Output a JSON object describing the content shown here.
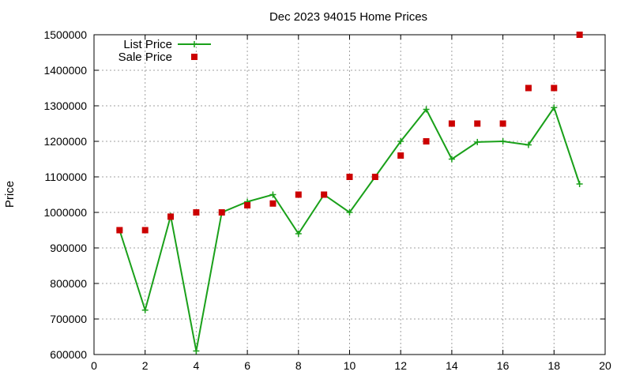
{
  "chart_data": {
    "type": "line",
    "title": "Dec 2023 94015 Home Prices",
    "xlabel": "",
    "ylabel": "Price",
    "xlim": [
      0,
      20
    ],
    "ylim": [
      600000,
      1500000
    ],
    "x_ticks": [
      0,
      2,
      4,
      6,
      8,
      10,
      12,
      14,
      16,
      18,
      20
    ],
    "y_ticks": [
      600000,
      700000,
      800000,
      900000,
      1000000,
      1100000,
      1200000,
      1300000,
      1400000,
      1500000
    ],
    "grid": true,
    "legend_position": "top-left",
    "series": [
      {
        "name": "List Price",
        "style": "line-with-plus-markers",
        "color": "#1aa01a",
        "x": [
          1,
          2,
          3,
          4,
          5,
          6,
          7,
          8,
          9,
          10,
          11,
          12,
          13,
          14,
          15,
          16,
          17,
          18,
          19
        ],
        "y": [
          950000,
          725000,
          990000,
          610000,
          1000000,
          1030000,
          1050000,
          940000,
          1050000,
          1000000,
          1100000,
          1200000,
          1290000,
          1150000,
          1198000,
          1200000,
          1190000,
          1295000,
          1080000
        ]
      },
      {
        "name": "Sale Price",
        "style": "square-markers",
        "color": "#cc0000",
        "x": [
          1,
          2,
          3,
          4,
          5,
          6,
          7,
          8,
          9,
          10,
          11,
          12,
          13,
          14,
          15,
          16,
          17,
          18,
          19
        ],
        "y": [
          950000,
          950000,
          988000,
          1000000,
          1000000,
          1020000,
          1025000,
          1050000,
          1050000,
          1100000,
          1100000,
          1160000,
          1200000,
          1250000,
          1250000,
          1250000,
          1350000,
          1350000,
          1500000
        ]
      }
    ]
  }
}
